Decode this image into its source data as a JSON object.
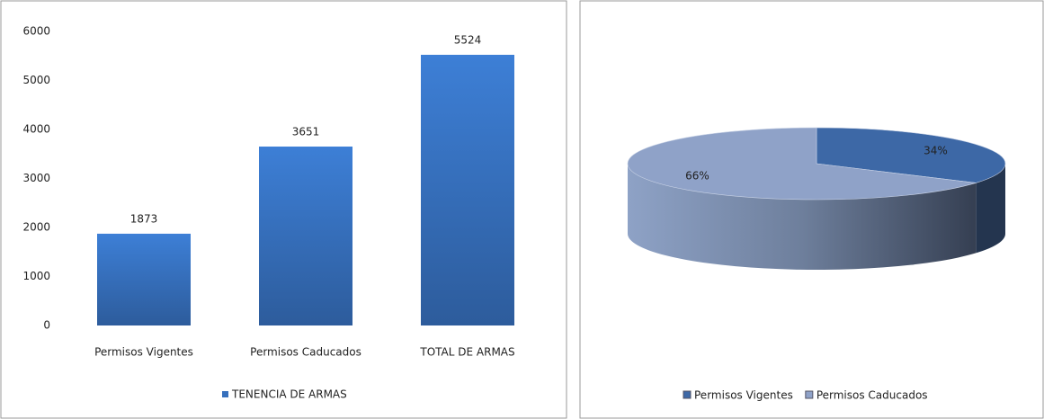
{
  "chart_data": [
    {
      "type": "bar",
      "categories": [
        "Permisos Vigentes",
        "Permisos Caducados",
        "TOTAL DE ARMAS"
      ],
      "series": [
        {
          "name": "TENENCIA DE ARMAS",
          "color": "#3670bd",
          "values": [
            1873,
            3651,
            5524
          ]
        }
      ],
      "ylim": [
        0,
        6000
      ],
      "yticks": [
        0,
        1000,
        2000,
        3000,
        4000,
        5000,
        6000
      ],
      "grid": false
    },
    {
      "type": "pie",
      "categories": [
        "Permisos Vigentes",
        "Permisos Caducados"
      ],
      "values": [
        34,
        66
      ],
      "value_labels": [
        "34%",
        "66%"
      ],
      "colors": [
        "#3d68a6",
        "#8fa2c8"
      ]
    }
  ]
}
